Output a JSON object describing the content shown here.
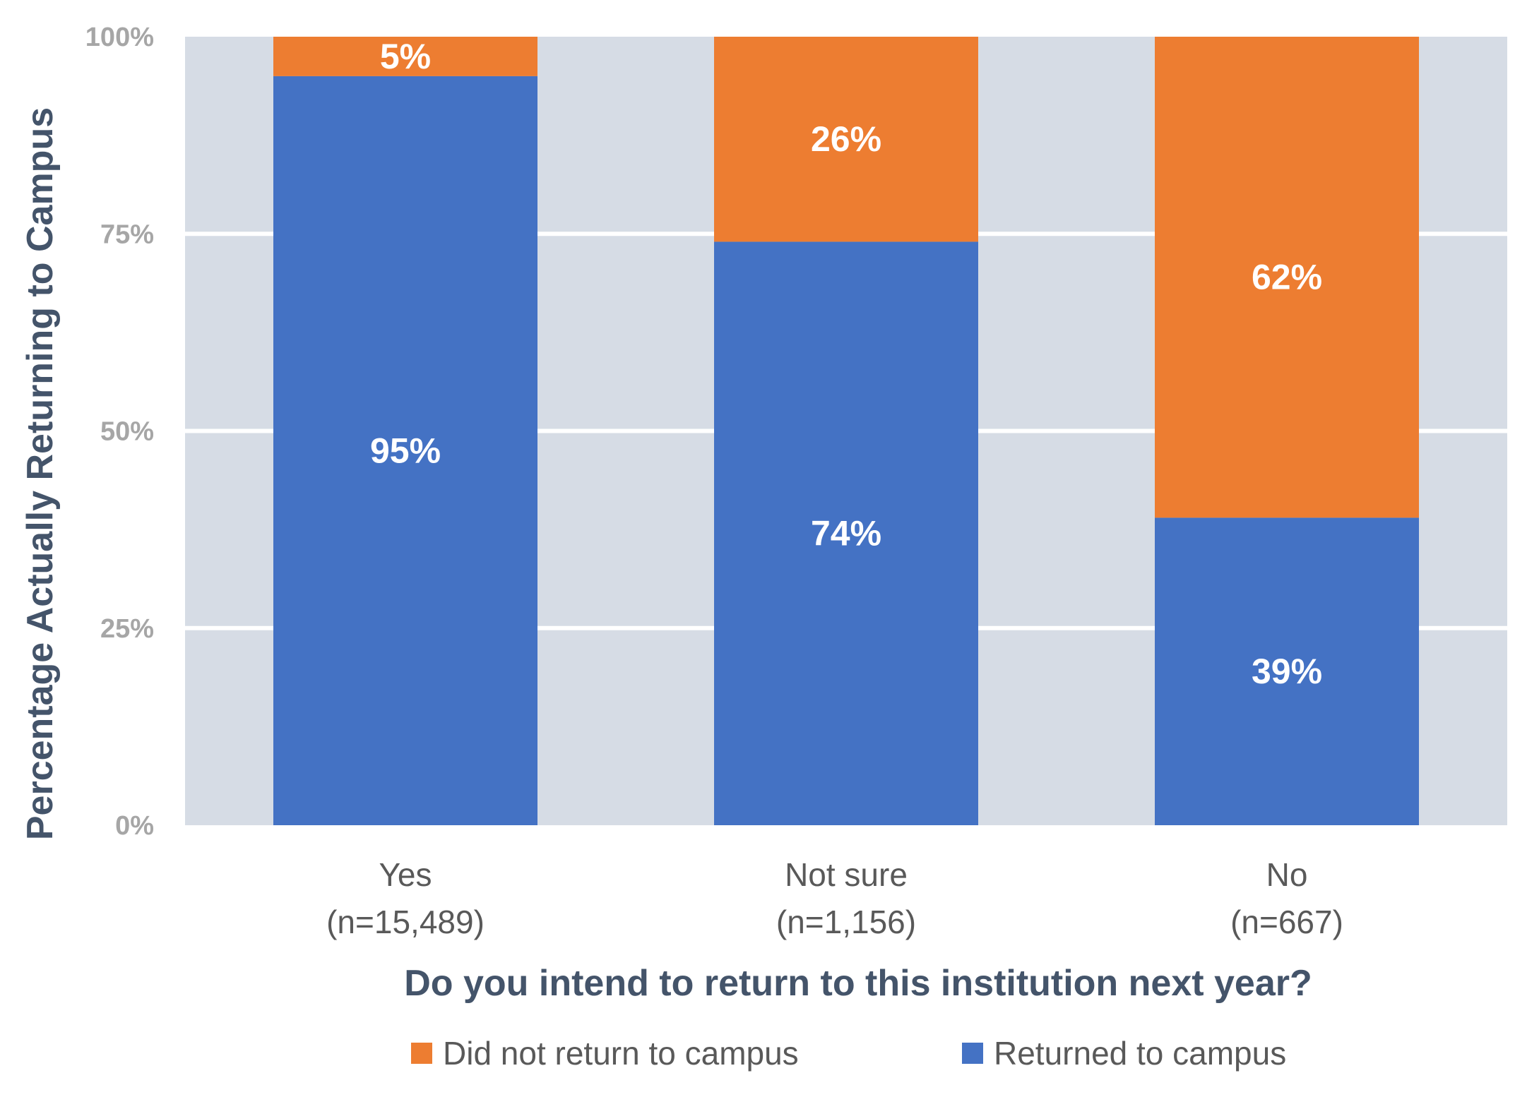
{
  "chart_data": {
    "type": "bar",
    "stacked": true,
    "title": "",
    "xlabel": "Do you intend to return to this institution next year?",
    "ylabel": "Percentage  Actually Returning to Campus",
    "ylim": [
      0,
      100
    ],
    "yticks": [
      0,
      25,
      50,
      75,
      100
    ],
    "ytick_labels": [
      "0%",
      "25%",
      "50%",
      "75%",
      "100%"
    ],
    "categories": [
      {
        "name": "Yes",
        "n": "(n=15,489)"
      },
      {
        "name": "Not sure",
        "n": "(n=1,156)"
      },
      {
        "name": "No",
        "n": "(n=667)"
      }
    ],
    "series": [
      {
        "name": "Returned to campus",
        "color": "#4472c4",
        "values": [
          95,
          74,
          39
        ],
        "labels": [
          "95%",
          "74%",
          "39%"
        ]
      },
      {
        "name": "Did not return to campus",
        "color": "#ed7d31",
        "values": [
          5,
          26,
          62
        ],
        "labels": [
          "5%",
          "26%",
          "62%"
        ]
      }
    ],
    "legend_order": [
      "Did not return to campus",
      "Returned to campus"
    ],
    "legend_position": "bottom",
    "grid": true,
    "plot_background": "#d6dce5",
    "grid_color": "#ffffff"
  }
}
